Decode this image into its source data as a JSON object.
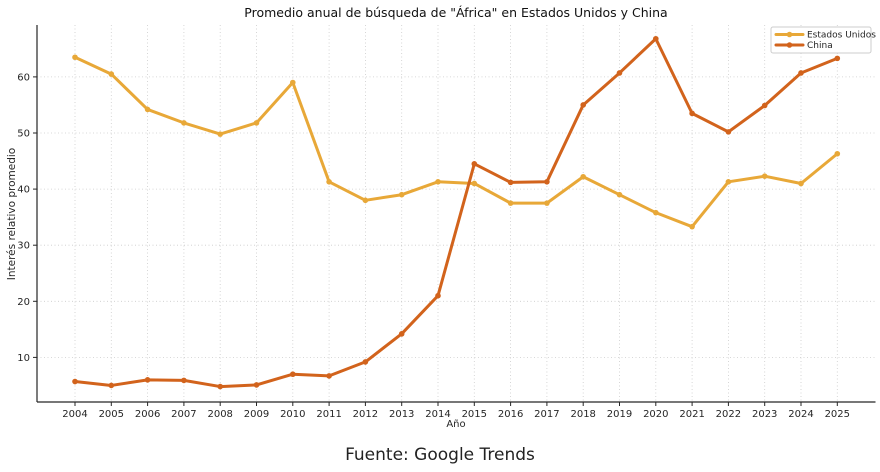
{
  "title": "Promedio anual de búsqueda de \"África\" en Estados Unidos y China",
  "footer": "Fuente: Google Trends",
  "legend": {
    "entries": [
      "Estados Unidos",
      "China"
    ]
  },
  "colors": {
    "estados_unidos": "#E8A838",
    "china": "#D2631C",
    "grid": "#cccccc",
    "spine": "#262626"
  },
  "chart_data": {
    "type": "line",
    "title": "Promedio anual de búsqueda de \"África\" en Estados Unidos y China",
    "xlabel": "Año",
    "ylabel": "Interés relativo promedio",
    "x": [
      2004,
      2005,
      2006,
      2007,
      2008,
      2009,
      2010,
      2011,
      2012,
      2013,
      2014,
      2015,
      2016,
      2017,
      2018,
      2019,
      2020,
      2021,
      2022,
      2023,
      2024,
      2025
    ],
    "series": [
      {
        "name": "Estados Unidos",
        "color": "#E8A838",
        "values": [
          63.5,
          60.5,
          54.2,
          51.8,
          49.8,
          51.8,
          59.0,
          41.3,
          38.0,
          39.0,
          41.3,
          41.0,
          37.5,
          37.5,
          42.2,
          39.0,
          35.8,
          33.3,
          41.3,
          42.3,
          41.0,
          46.3
        ]
      },
      {
        "name": "China",
        "color": "#D2631C",
        "values": [
          5.7,
          5.0,
          6.0,
          5.9,
          4.8,
          5.1,
          7.0,
          6.7,
          9.2,
          14.2,
          21.0,
          44.5,
          41.2,
          41.3,
          55.0,
          60.7,
          66.8,
          53.5,
          50.2,
          54.9,
          60.7,
          63.3
        ]
      }
    ],
    "yticks": [
      10,
      20,
      30,
      40,
      50,
      60
    ],
    "ylim": [
      2.05,
      69.25
    ],
    "grid": true,
    "grid_style": "dotted",
    "legend_position": "upper right",
    "markers": true
  }
}
